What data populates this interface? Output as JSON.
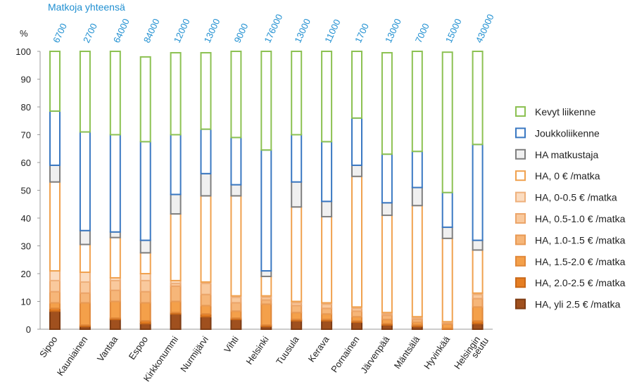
{
  "chart_data": {
    "type": "bar",
    "stacked": true,
    "totals_header": "Matkoja  yhteensä",
    "ylabel": "%",
    "ylim": [
      0,
      100
    ],
    "yticks": [
      0,
      10,
      20,
      30,
      40,
      50,
      60,
      70,
      80,
      90,
      100
    ],
    "categories": [
      {
        "label": "Sipoo",
        "label2": "",
        "total": "6700"
      },
      {
        "label": "Kauniainen",
        "label2": "",
        "total": "2700"
      },
      {
        "label": "Vantaa",
        "label2": "",
        "total": "64000"
      },
      {
        "label": "Espoo",
        "label2": "",
        "total": "84000"
      },
      {
        "label": "Kirkkonummi",
        "label2": "",
        "total": "12000"
      },
      {
        "label": "Nurmijärvi",
        "label2": "",
        "total": "13000"
      },
      {
        "label": "Vihti",
        "label2": "",
        "total": "9000"
      },
      {
        "label": "Helsinki",
        "label2": "",
        "total": "176000"
      },
      {
        "label": "Tuusula",
        "label2": "",
        "total": "13000"
      },
      {
        "label": "Kerava",
        "label2": "",
        "total": "11000"
      },
      {
        "label": "Pornainen",
        "label2": "",
        "total": "1700"
      },
      {
        "label": "Järvenpää",
        "label2": "",
        "total": "13000"
      },
      {
        "label": "Mäntsälä",
        "label2": "",
        "total": "7000"
      },
      {
        "label": "Hyvinkää",
        "label2": "",
        "total": "15000"
      },
      {
        "label": "Helsingin",
        "label2": "seutu",
        "total": "430000"
      }
    ],
    "series": [
      {
        "name": "HA, yli 2.5 € /matka",
        "color": "#a0501e",
        "fill": "#a0501e",
        "stroke": "#7e3c14",
        "values": [
          6.5,
          1.0,
          3.5,
          2.0,
          5.5,
          4.5,
          3.5,
          1.0,
          3.0,
          3.0,
          2.5,
          1.5,
          1.0,
          0.0,
          2.0
        ]
      },
      {
        "name": "HA, 2.0-2.5 € /matka",
        "color": "#e67e22",
        "fill": "#e67e22",
        "stroke": "#c9691a",
        "values": [
          1.0,
          0.5,
          0.5,
          1.0,
          0.5,
          1.0,
          0.5,
          0.5,
          0.5,
          0.5,
          0.5,
          0.5,
          0.5,
          0.3,
          1.0
        ]
      },
      {
        "name": "HA, 1.5-2.0 € /matka",
        "color": "#f4a04a",
        "fill": "#f4a04a",
        "stroke": "#e0883a",
        "values": [
          2.0,
          8.0,
          6.0,
          6.5,
          4.0,
          3.0,
          2.5,
          7.5,
          2.5,
          2.0,
          1.5,
          1.5,
          1.0,
          1.5,
          5.0
        ]
      },
      {
        "name": "HA, 1.0-1.5 € /matka",
        "color": "#f6b679",
        "fill": "#f6b679",
        "stroke": "#e89a55",
        "values": [
          4.0,
          3.5,
          4.0,
          4.0,
          5.5,
          4.0,
          3.0,
          1.5,
          2.5,
          2.0,
          2.0,
          1.5,
          1.0,
          0.5,
          3.0
        ]
      },
      {
        "name": "HA, 0.5-1.0 € /matka",
        "color": "#f9c99d",
        "fill": "#f9c99d",
        "stroke": "#eca56a",
        "values": [
          4.0,
          4.0,
          3.5,
          4.0,
          1.0,
          4.0,
          2.0,
          1.0,
          1.0,
          1.5,
          1.0,
          0.5,
          0.5,
          0.2,
          1.5
        ]
      },
      {
        "name": "HA, 0-0.5 € /matka",
        "color": "#fbdcc0",
        "fill": "#fbdcc0",
        "stroke": "#eeb07c",
        "values": [
          3.5,
          3.5,
          1.0,
          2.5,
          1.0,
          0.5,
          0.5,
          0.5,
          0.5,
          0.5,
          0.5,
          0.5,
          0.5,
          0.2,
          0.5
        ]
      },
      {
        "name": "HA, 0 € /matka",
        "color": "#ffffff",
        "fill": "#ffffff",
        "stroke": "#f0a14e",
        "values": [
          32.0,
          10.0,
          14.5,
          7.5,
          24.0,
          31.0,
          36.0,
          7.0,
          34.0,
          31.0,
          47.0,
          35.0,
          40.0,
          30.0,
          15.5
        ]
      },
      {
        "name": "HA matkustaja",
        "color": "#f0f0f0",
        "fill": "#f0f0f0",
        "stroke": "#7f7f7f",
        "values": [
          6.0,
          5.0,
          2.0,
          4.5,
          7.0,
          8.0,
          4.0,
          2.0,
          9.0,
          5.5,
          4.0,
          4.5,
          6.5,
          4.0,
          3.5
        ]
      },
      {
        "name": "Joukkoliikenne",
        "color": "#ffffff",
        "fill": "#ffffff",
        "stroke": "#3a78c2",
        "values": [
          19.5,
          35.5,
          35.0,
          35.5,
          21.5,
          16.0,
          17.0,
          43.5,
          17.0,
          21.5,
          17.0,
          17.5,
          13.0,
          12.5,
          34.5
        ]
      },
      {
        "name": "Kevyt liikenne",
        "color": "#ffffff",
        "fill": "#ffffff",
        "stroke": "#8cc152",
        "values": [
          21.5,
          29.0,
          30.0,
          30.5,
          29.5,
          27.5,
          31.0,
          35.5,
          30.0,
          32.5,
          24.0,
          36.5,
          36.0,
          50.5,
          33.5
        ]
      }
    ]
  }
}
